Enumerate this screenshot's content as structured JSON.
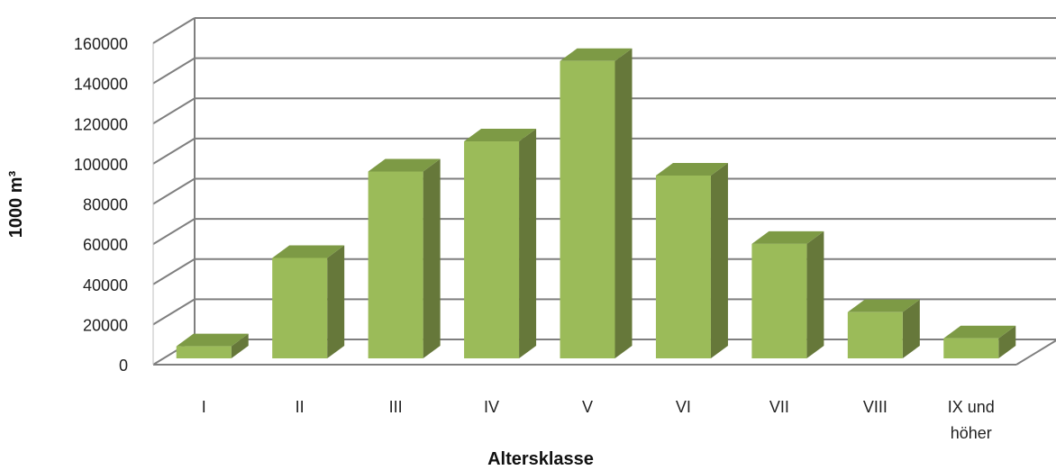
{
  "chart_data": {
    "type": "bar",
    "categories": [
      "I",
      "II",
      "III",
      "IV",
      "V",
      "VI",
      "VII",
      "VIII",
      "IX und höher"
    ],
    "values": [
      6000,
      50000,
      93000,
      108000,
      148000,
      91000,
      57000,
      23000,
      10000
    ],
    "xlabel": "Altersklasse",
    "ylabel": "1000 m³",
    "ylim": [
      0,
      160000
    ],
    "yticks": [
      "0",
      "20000",
      "40000",
      "60000",
      "80000",
      "100000",
      "120000",
      "140000",
      "160000"
    ],
    "grid": true,
    "legend": "none",
    "colors": {
      "front": "#9bbb59",
      "top": "#7d9a45",
      "side": "#66783a",
      "grid": "#7f7f7f"
    }
  }
}
